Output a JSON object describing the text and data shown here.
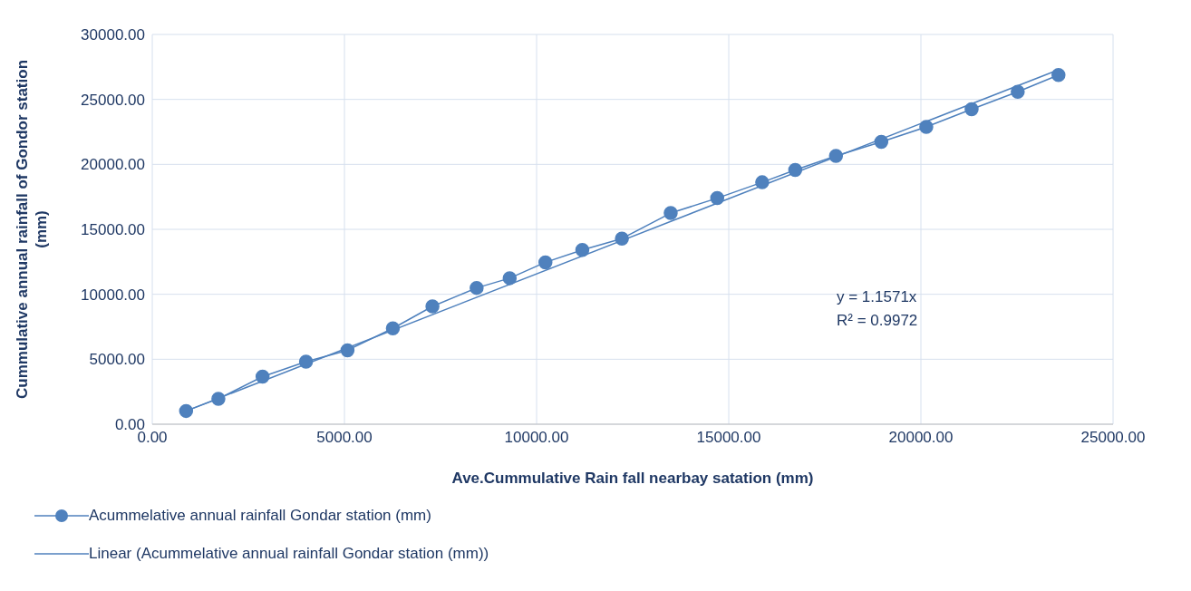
{
  "chart_data": {
    "type": "scatter",
    "xlabel": "Ave.Cummulative Rain fall nearbay satation (mm)",
    "ylabel": "Cummulative annual rainfall of Gondor station (mm)",
    "xlim": [
      0,
      25000
    ],
    "xticks": [
      {
        "value": 0,
        "label": "0.00"
      },
      {
        "value": 5000,
        "label": "5000.00"
      },
      {
        "value": 10000,
        "label": "10000.00"
      },
      {
        "value": 15000,
        "label": "15000.00"
      },
      {
        "value": 20000,
        "label": "20000.00"
      },
      {
        "value": 25000,
        "label": "25000.00"
      }
    ],
    "ylim": [
      0,
      30000
    ],
    "yticks": [
      {
        "value": 0,
        "label": "0.00"
      },
      {
        "value": 5000,
        "label": "5000.00"
      },
      {
        "value": 10000,
        "label": "10000.00"
      },
      {
        "value": 15000,
        "label": "15000.00"
      },
      {
        "value": 20000,
        "label": "20000.00"
      },
      {
        "value": 25000,
        "label": "25000.00"
      },
      {
        "value": 30000,
        "label": "30000.00"
      }
    ],
    "grid": true,
    "legend": "bottom",
    "series": [
      {
        "name": "Acummelative annual rainfall Gondar station (mm)",
        "type": "line",
        "marker": "circle",
        "color": "#4f81bd",
        "x": [
          880,
          1720,
          2870,
          4000,
          5080,
          6260,
          7290,
          8440,
          9300,
          10230,
          11190,
          12220,
          13490,
          14700,
          15870,
          16730,
          17790,
          18970,
          20140,
          21320,
          22520,
          23580
        ],
        "values": [
          1020,
          1960,
          3660,
          4810,
          5690,
          7380,
          9070,
          10490,
          11240,
          12460,
          13410,
          14290,
          16250,
          17400,
          18620,
          19570,
          20650,
          21730,
          22880,
          24240,
          25590,
          26880
        ]
      },
      {
        "name": "Linear (Acummelative annual rainfall Gondar station (mm))",
        "type": "line",
        "marker": "none",
        "color": "#4f81bd",
        "x": [
          880,
          23580
        ],
        "values": [
          1020,
          27280
        ]
      }
    ],
    "annotations": [
      "y = 1.1571x",
      "R² = 0.9972"
    ]
  }
}
